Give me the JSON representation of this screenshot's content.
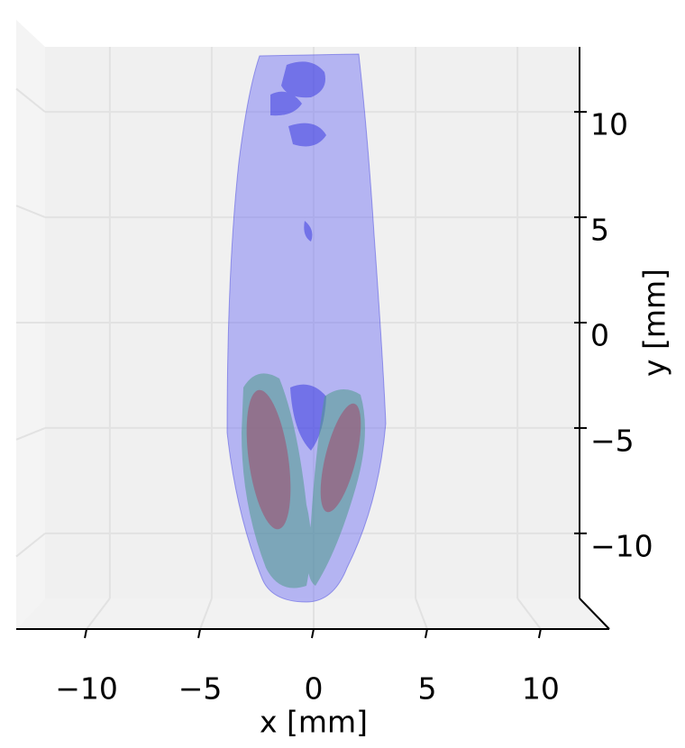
{
  "chart_data": {
    "type": "isosurface",
    "xlabel": "x [mm]",
    "ylabel": "y [mm]",
    "xlim": [
      -13,
      13
    ],
    "ylim": [
      -13,
      13
    ],
    "xticks": [
      {
        "value": -10,
        "label": "−10"
      },
      {
        "value": -5,
        "label": "−5"
      },
      0,
      5,
      10
    ],
    "yticks": [
      {
        "value": -10,
        "label": "−10"
      },
      {
        "value": -5,
        "label": "−5"
      },
      0,
      5,
      10
    ],
    "grid": true
  }
}
